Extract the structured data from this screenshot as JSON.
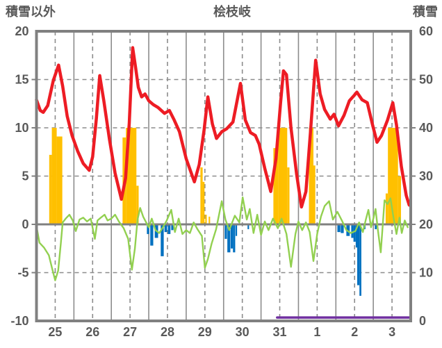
{
  "chart_data": {
    "type": "line",
    "title": "桧枝岐",
    "left_axis": {
      "label": "積雪以外",
      "range": [
        -10,
        20
      ],
      "ticks": [
        20,
        15,
        10,
        5,
        0,
        -5,
        -10
      ]
    },
    "right_axis": {
      "label": "積雪",
      "range": [
        0,
        60
      ],
      "ticks": [
        60,
        50,
        40,
        30,
        20,
        10,
        0
      ]
    },
    "x_axis": {
      "labels": [
        "25",
        "26",
        "27",
        "28",
        "29",
        "30",
        "31",
        "1",
        "2",
        "3"
      ],
      "days": 10
    },
    "grid": {
      "h_dashed_left_values": [
        15,
        10,
        5,
        -5
      ],
      "zero_line_left_value": 0,
      "left_tick_stub_values": [
        15,
        10,
        5,
        0,
        -5
      ],
      "right_tick_stub_values": [
        50,
        40,
        30,
        20,
        10
      ]
    },
    "colors": {
      "red": "#ed1c24",
      "orange": "#ffc000",
      "green": "#92d050",
      "blue": "#0070c0",
      "purple": "#7030a0",
      "grid": "#8c8c8c",
      "border": "#808080",
      "text": "#595959"
    },
    "series": [
      {
        "name": "orange-bars",
        "type": "bar",
        "axis": "left",
        "color": "#ffc000",
        "bars": [
          [
            0.34,
            0.07,
            7.2
          ],
          [
            0.41,
            0.13,
            10
          ],
          [
            0.54,
            0.15,
            9.1
          ],
          [
            2.3,
            0.09,
            9.0
          ],
          [
            2.39,
            0.28,
            10
          ],
          [
            2.67,
            0.06,
            4.0
          ],
          [
            4.38,
            0.06,
            5.9
          ],
          [
            4.44,
            0.05,
            4.4
          ],
          [
            4.51,
            0.04,
            1.0
          ],
          [
            4.6,
            0.04,
            0.8
          ],
          [
            6.33,
            0.13,
            7.9
          ],
          [
            6.46,
            0.24,
            10
          ],
          [
            6.7,
            0.06,
            5.9
          ],
          [
            7.28,
            0.12,
            10
          ],
          [
            7.4,
            0.05,
            6.1
          ],
          [
            9.33,
            0.06,
            3.2
          ],
          [
            9.39,
            0.27,
            10
          ],
          [
            9.66,
            0.08,
            5.0
          ]
        ]
      },
      {
        "name": "blue-bars",
        "type": "bar",
        "axis": "left",
        "color": "#0070c0",
        "bars": [
          [
            2.95,
            0.06,
            -1.0
          ],
          [
            3.04,
            0.08,
            -2.2
          ],
          [
            3.16,
            0.09,
            -1.4
          ],
          [
            3.32,
            0.08,
            -3.3
          ],
          [
            3.42,
            0.07,
            -0.8
          ],
          [
            3.51,
            0.07,
            -1.0
          ],
          [
            3.6,
            0.06,
            -0.6
          ],
          [
            5.03,
            0.06,
            -1.5
          ],
          [
            5.1,
            0.08,
            -2.9
          ],
          [
            5.19,
            0.06,
            -2.5
          ],
          [
            5.25,
            0.06,
            -2.9
          ],
          [
            5.32,
            0.04,
            -1.2
          ],
          [
            5.64,
            0.04,
            -0.5
          ],
          [
            8.04,
            0.08,
            -0.8
          ],
          [
            8.13,
            0.08,
            -0.9
          ],
          [
            8.28,
            0.09,
            -1.2
          ],
          [
            8.41,
            0.06,
            -1.4
          ],
          [
            8.47,
            0.06,
            -1.8
          ],
          [
            8.53,
            0.04,
            -2.4
          ],
          [
            8.57,
            0.06,
            -6.3
          ],
          [
            8.63,
            0.05,
            -7.4
          ],
          [
            8.73,
            0.06,
            -0.5
          ],
          [
            9.04,
            0.05,
            -0.5
          ]
        ]
      },
      {
        "name": "green-line",
        "type": "line",
        "axis": "left",
        "color": "#92d050",
        "width": 2.4,
        "points": [
          [
            0,
            -0.2
          ],
          [
            0.08,
            -1.9
          ],
          [
            0.2,
            -2.4
          ],
          [
            0.33,
            -3.2
          ],
          [
            0.42,
            -4.6
          ],
          [
            0.5,
            -5.8
          ],
          [
            0.58,
            -4.8
          ],
          [
            0.65,
            -2.0
          ],
          [
            0.7,
            0.2
          ],
          [
            0.78,
            0.6
          ],
          [
            0.88,
            1.0
          ],
          [
            0.97,
            0.4
          ],
          [
            1.05,
            -0.7
          ],
          [
            1.15,
            0.5
          ],
          [
            1.25,
            0.7
          ],
          [
            1.35,
            0.3
          ],
          [
            1.45,
            0.6
          ],
          [
            1.56,
            -1.5
          ],
          [
            1.63,
            0.4
          ],
          [
            1.72,
            0.7
          ],
          [
            1.82,
            1.0
          ],
          [
            1.9,
            0.4
          ],
          [
            2.0,
            0.6
          ],
          [
            2.1,
            1.0
          ],
          [
            2.2,
            0.3
          ],
          [
            2.33,
            -0.4
          ],
          [
            2.45,
            -1.5
          ],
          [
            2.55,
            -4.7
          ],
          [
            2.63,
            -2.5
          ],
          [
            2.7,
            0.5
          ],
          [
            2.77,
            1.7
          ],
          [
            2.85,
            0.8
          ],
          [
            2.93,
            0.2
          ],
          [
            3.0,
            -0.3
          ],
          [
            3.08,
            0.6
          ],
          [
            3.18,
            -0.6
          ],
          [
            3.28,
            -0.9
          ],
          [
            3.38,
            -0.3
          ],
          [
            3.48,
            0.4
          ],
          [
            3.6,
            1.5
          ],
          [
            3.7,
            -0.8
          ],
          [
            3.8,
            0.6
          ],
          [
            3.9,
            -1.0
          ],
          [
            4.0,
            -0.6
          ],
          [
            4.1,
            -0.9
          ],
          [
            4.2,
            0.2
          ],
          [
            4.3,
            -0.5
          ],
          [
            4.42,
            -1.2
          ],
          [
            4.5,
            -4.5
          ],
          [
            4.58,
            -3.6
          ],
          [
            4.68,
            -2.0
          ],
          [
            4.8,
            -0.5
          ],
          [
            4.95,
            2.4
          ],
          [
            5.05,
            0.5
          ],
          [
            5.15,
            -0.6
          ],
          [
            5.3,
            0.9
          ],
          [
            5.42,
            0.2
          ],
          [
            5.51,
            2.8
          ],
          [
            5.62,
            0.5
          ],
          [
            5.7,
            1.6
          ],
          [
            5.8,
            -0.9
          ],
          [
            5.9,
            1.0
          ],
          [
            6.0,
            -1.1
          ],
          [
            6.1,
            0.3
          ],
          [
            6.2,
            -0.6
          ],
          [
            6.32,
            0.6
          ],
          [
            6.45,
            -0.4
          ],
          [
            6.55,
            0.6
          ],
          [
            6.68,
            -1.0
          ],
          [
            6.8,
            -4.4
          ],
          [
            6.92,
            -1.0
          ],
          [
            7.0,
            0.3
          ],
          [
            7.1,
            -0.6
          ],
          [
            7.2,
            0.2
          ],
          [
            7.3,
            -0.8
          ],
          [
            7.4,
            -3.8
          ],
          [
            7.5,
            -1.0
          ],
          [
            7.6,
            0.8
          ],
          [
            7.7,
            1.9
          ],
          [
            7.82,
            2.4
          ],
          [
            7.92,
            0.5
          ],
          [
            8.04,
            1.3
          ],
          [
            8.16,
            0.4
          ],
          [
            8.28,
            -0.6
          ],
          [
            8.4,
            -0.9
          ],
          [
            8.52,
            -0.7
          ],
          [
            8.62,
            0.2
          ],
          [
            8.72,
            -0.8
          ],
          [
            8.8,
            0.5
          ],
          [
            8.87,
            1.5
          ],
          [
            8.94,
            -0.3
          ],
          [
            9.0,
            0.6
          ],
          [
            9.06,
            1.6
          ],
          [
            9.12,
            -0.5
          ],
          [
            9.2,
            -2.9
          ],
          [
            9.3,
            2.5
          ],
          [
            9.38,
            2.1
          ],
          [
            9.46,
            2.7
          ],
          [
            9.54,
            0.7
          ],
          [
            9.62,
            -1.0
          ],
          [
            9.7,
            0.7
          ],
          [
            9.76,
            -0.9
          ],
          [
            9.84,
            0.4
          ],
          [
            9.92,
            -0.3
          ]
        ]
      },
      {
        "name": "red-line",
        "type": "line",
        "axis": "left",
        "color": "#ed1c24",
        "width": 4.5,
        "points": [
          [
            0,
            12.9
          ],
          [
            0.1,
            11.8
          ],
          [
            0.18,
            11.6
          ],
          [
            0.3,
            12.3
          ],
          [
            0.45,
            14.9
          ],
          [
            0.59,
            16.5
          ],
          [
            0.7,
            14.3
          ],
          [
            0.82,
            11.2
          ],
          [
            0.95,
            9.2
          ],
          [
            1.1,
            7.6
          ],
          [
            1.25,
            6.3
          ],
          [
            1.41,
            5.6
          ],
          [
            1.5,
            7.0
          ],
          [
            1.6,
            11.0
          ],
          [
            1.69,
            15.4
          ],
          [
            1.8,
            12.8
          ],
          [
            1.95,
            8.8
          ],
          [
            2.1,
            5.3
          ],
          [
            2.27,
            2.6
          ],
          [
            2.38,
            4.8
          ],
          [
            2.48,
            10.5
          ],
          [
            2.57,
            18.3
          ],
          [
            2.65,
            16.2
          ],
          [
            2.72,
            14.2
          ],
          [
            2.81,
            13.2
          ],
          [
            2.9,
            13.5
          ],
          [
            3.0,
            12.8
          ],
          [
            3.12,
            12.4
          ],
          [
            3.25,
            12.1
          ],
          [
            3.42,
            11.5
          ],
          [
            3.55,
            11.8
          ],
          [
            3.68,
            10.8
          ],
          [
            3.82,
            9.6
          ],
          [
            4.0,
            6.8
          ],
          [
            4.22,
            4.4
          ],
          [
            4.35,
            6.2
          ],
          [
            4.48,
            9.8
          ],
          [
            4.58,
            13.2
          ],
          [
            4.7,
            10.4
          ],
          [
            4.81,
            8.9
          ],
          [
            4.95,
            9.6
          ],
          [
            5.08,
            9.9
          ],
          [
            5.25,
            10.6
          ],
          [
            5.45,
            14.6
          ],
          [
            5.58,
            10.8
          ],
          [
            5.72,
            9.5
          ],
          [
            5.85,
            9.2
          ],
          [
            5.95,
            8.3
          ],
          [
            6.1,
            5.8
          ],
          [
            6.26,
            3.4
          ],
          [
            6.4,
            6.8
          ],
          [
            6.52,
            12.5
          ],
          [
            6.6,
            15.9
          ],
          [
            6.68,
            15.5
          ],
          [
            6.8,
            10.0
          ],
          [
            6.95,
            5.2
          ],
          [
            7.08,
            1.8
          ],
          [
            7.2,
            3.4
          ],
          [
            7.33,
            10.0
          ],
          [
            7.46,
            17.0
          ],
          [
            7.58,
            13.5
          ],
          [
            7.7,
            11.9
          ],
          [
            7.85,
            10.9
          ],
          [
            7.95,
            11.4
          ],
          [
            8.07,
            10.2
          ],
          [
            8.22,
            11.3
          ],
          [
            8.36,
            12.8
          ],
          [
            8.5,
            13.4
          ],
          [
            8.56,
            13.7
          ],
          [
            8.7,
            12.9
          ],
          [
            8.84,
            12.6
          ],
          [
            8.98,
            10.3
          ],
          [
            9.1,
            8.5
          ],
          [
            9.22,
            9.2
          ],
          [
            9.38,
            10.8
          ],
          [
            9.52,
            12.6
          ],
          [
            9.62,
            10.3
          ],
          [
            9.75,
            6.0
          ],
          [
            9.88,
            3.0
          ],
          [
            9.96,
            2.0
          ]
        ]
      },
      {
        "name": "purple-line",
        "type": "line",
        "axis": "right",
        "color": "#7030a0",
        "width": 3.5,
        "points": [
          [
            6.43,
            0.7
          ],
          [
            9.97,
            0.7
          ]
        ]
      }
    ]
  }
}
